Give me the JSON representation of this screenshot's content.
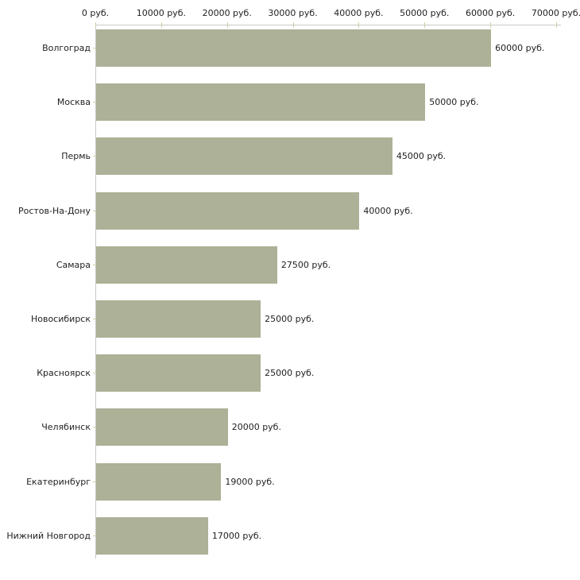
{
  "chart_data": {
    "type": "bar",
    "orientation": "horizontal",
    "title": "",
    "xlabel": "",
    "ylabel": "",
    "unit": "руб.",
    "categories": [
      "Волгоград",
      "Москва",
      "Пермь",
      "Ростов-На-Дону",
      "Самара",
      "Новосибирск",
      "Красноярск",
      "Челябинск",
      "Екатеринбург",
      "Нижний Новгород"
    ],
    "values": [
      60000,
      50000,
      45000,
      40000,
      27500,
      25000,
      25000,
      20000,
      19000,
      17000
    ],
    "bar_labels": [
      "60000 руб.",
      "50000 руб.",
      "45000 руб.",
      "40000 руб.",
      "27500 руб.",
      "25000 руб.",
      "25000 руб.",
      "20000 руб.",
      "19000 руб.",
      "17000 руб."
    ],
    "x_ticks": {
      "values": [
        0,
        10000,
        20000,
        30000,
        40000,
        50000,
        60000,
        70000
      ],
      "labels": [
        "0 руб.",
        "10000 руб.",
        "20000 руб.",
        "30000 руб.",
        "40000 руб.",
        "50000 руб.",
        "60000 руб.",
        "70000 руб."
      ]
    },
    "xlim": [
      0,
      70000
    ],
    "grid": false,
    "legend": false,
    "colors": {
      "bar": "#acb197",
      "axis_line": "#c9c9c9",
      "tick_mark": "#ccd0a6",
      "text": "#1f1f1f",
      "background": "#ffffff"
    }
  }
}
